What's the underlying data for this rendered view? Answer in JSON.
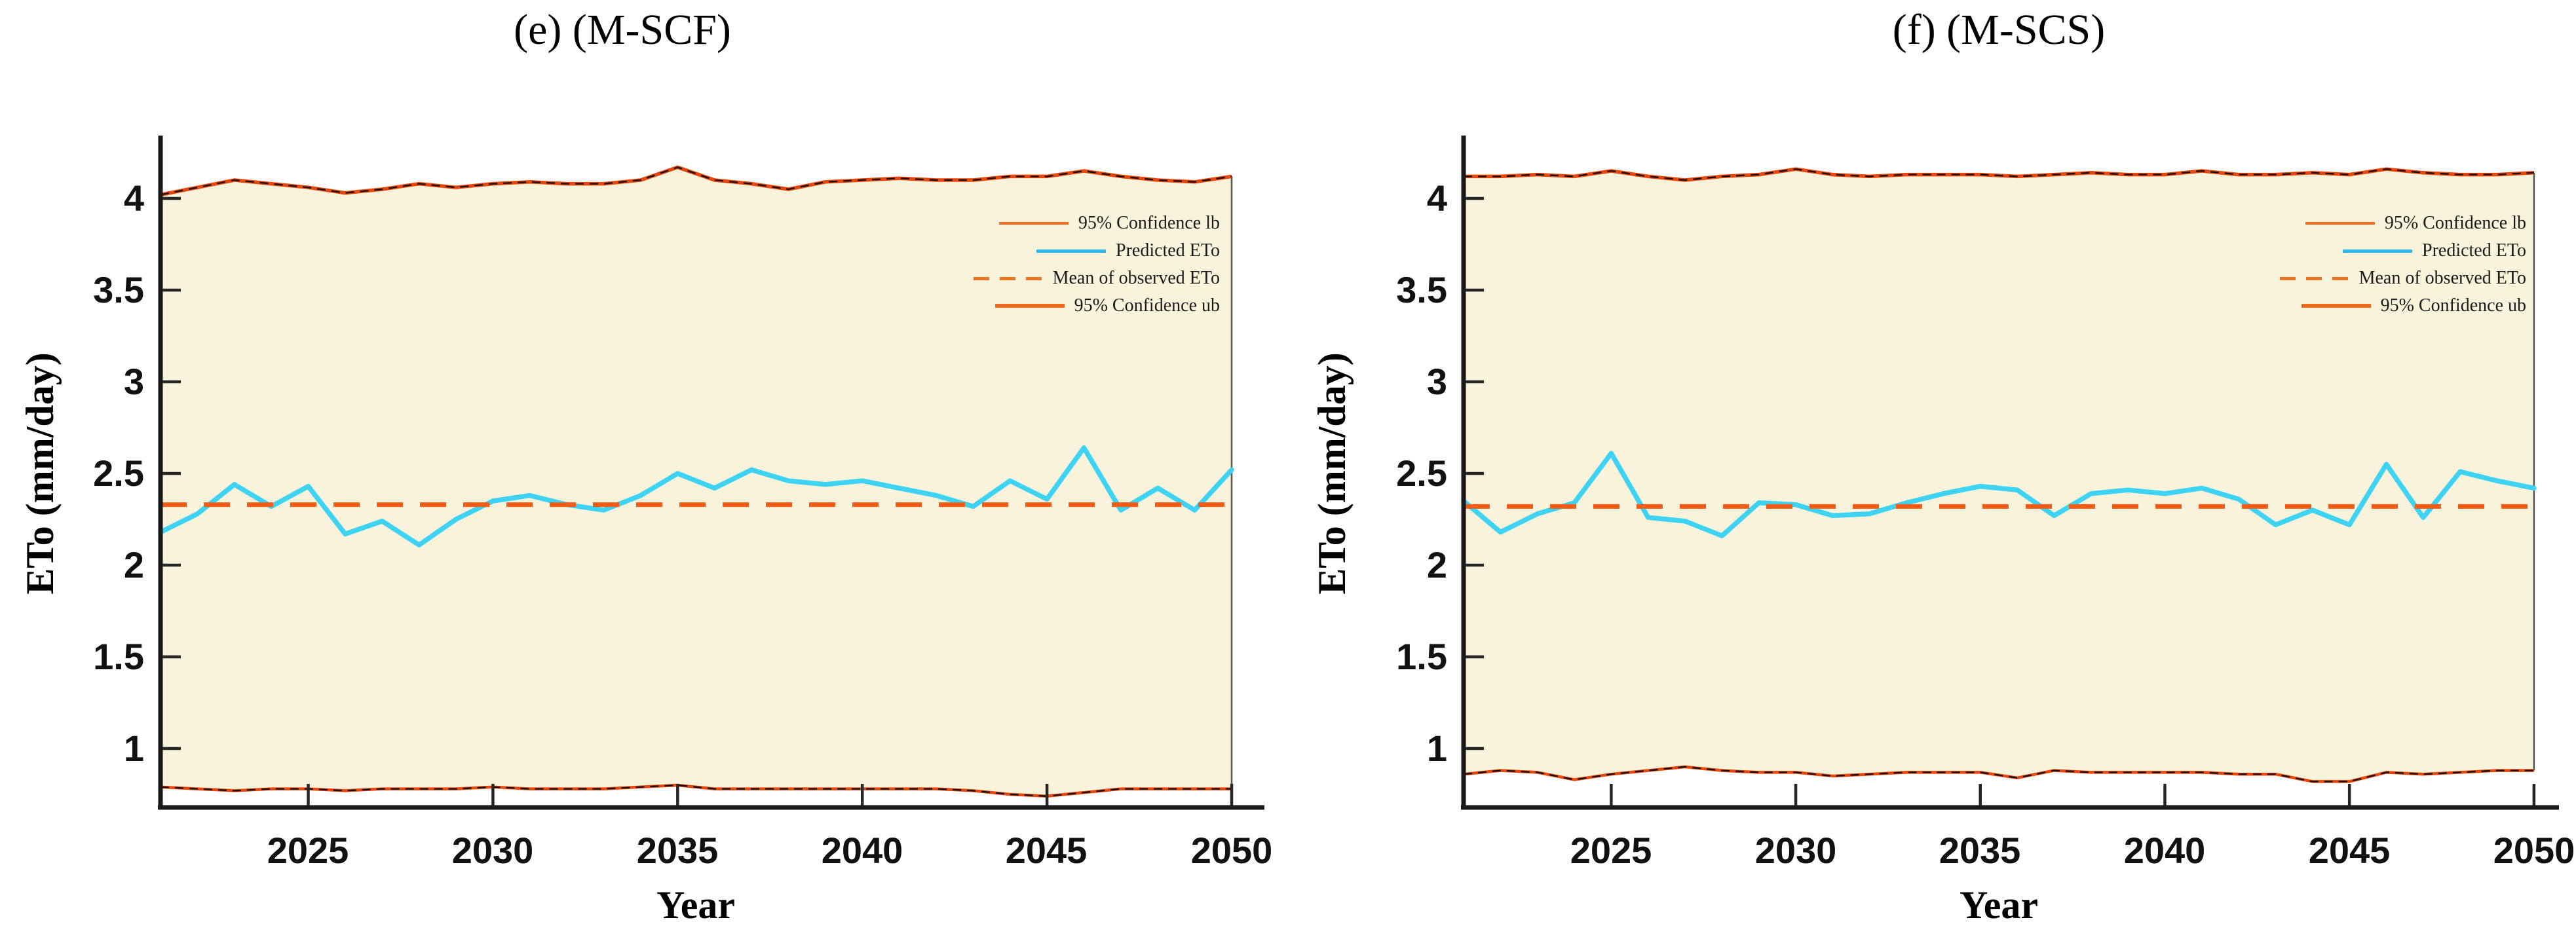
{
  "colors": {
    "confidence_line": "#e8470c",
    "confidence_overlay": "#1a0d00",
    "predicted_line": "#3ed3f2",
    "mean_line": "#f25c17",
    "band_fill": "#faf3dc",
    "band_edge": "#555555",
    "axis": "#1a1a1a",
    "tick": "#262626"
  },
  "chart_data": [
    {
      "id": "chart-e",
      "type": "line",
      "title": "(e) (M-SCF)",
      "xlabel": "Year",
      "ylabel": "ETo (mm/day)",
      "x": [
        2021,
        2022,
        2023,
        2024,
        2025,
        2026,
        2027,
        2028,
        2029,
        2030,
        2031,
        2032,
        2033,
        2034,
        2035,
        2036,
        2037,
        2038,
        2039,
        2040,
        2041,
        2042,
        2043,
        2044,
        2045,
        2046,
        2047,
        2048,
        2049,
        2050
      ],
      "xlim": [
        2021,
        2050.9
      ],
      "ylim": [
        0.68,
        4.34
      ],
      "grid": false,
      "legend_position": "upper right",
      "x_tick_labels": [
        "2025",
        "2030",
        "2035",
        "2040",
        "2045",
        "2050"
      ],
      "y_tick_labels": [
        "4",
        "3.5",
        "3",
        "2.5",
        "2",
        "1.5",
        "1"
      ],
      "series": [
        {
          "name": "95% Confidence lb",
          "style": "solid-thin",
          "values": [
            0.79,
            0.78,
            0.77,
            0.78,
            0.78,
            0.77,
            0.78,
            0.78,
            0.78,
            0.79,
            0.78,
            0.78,
            0.78,
            0.79,
            0.8,
            0.78,
            0.78,
            0.78,
            0.78,
            0.78,
            0.78,
            0.78,
            0.77,
            0.75,
            0.74,
            0.76,
            0.78,
            0.78,
            0.78,
            0.78
          ]
        },
        {
          "name": "Predicted ETo",
          "style": "solid",
          "values": [
            2.18,
            2.28,
            2.44,
            2.32,
            2.43,
            2.17,
            2.24,
            2.11,
            2.25,
            2.35,
            2.38,
            2.33,
            2.3,
            2.38,
            2.5,
            2.42,
            2.52,
            2.46,
            2.44,
            2.46,
            2.42,
            2.38,
            2.32,
            2.46,
            2.36,
            2.64,
            2.3,
            2.42,
            2.3,
            2.52
          ]
        },
        {
          "name": "Mean of observed ETo",
          "style": "dashed",
          "values": 2.33
        },
        {
          "name": "95% Confidence ub",
          "style": "solid-thick",
          "values": [
            4.02,
            4.06,
            4.1,
            4.08,
            4.06,
            4.03,
            4.05,
            4.08,
            4.06,
            4.08,
            4.09,
            4.08,
            4.08,
            4.1,
            4.17,
            4.1,
            4.08,
            4.05,
            4.09,
            4.1,
            4.11,
            4.1,
            4.1,
            4.12,
            4.12,
            4.15,
            4.12,
            4.1,
            4.09,
            4.12
          ]
        }
      ],
      "fill_between": {
        "upper": "95% Confidence ub",
        "lower": "95% Confidence lb"
      }
    },
    {
      "id": "chart-f",
      "type": "line",
      "title": "(f) (M-SCS)",
      "xlabel": "Year",
      "ylabel": "ETo (mm/day)",
      "x": [
        2021,
        2022,
        2023,
        2024,
        2025,
        2026,
        2027,
        2028,
        2029,
        2030,
        2031,
        2032,
        2033,
        2034,
        2035,
        2036,
        2037,
        2038,
        2039,
        2040,
        2041,
        2042,
        2043,
        2044,
        2045,
        2046,
        2047,
        2048,
        2049,
        2050
      ],
      "xlim": [
        2021,
        2050.7
      ],
      "ylim": [
        0.68,
        4.34
      ],
      "grid": false,
      "legend_position": "upper right",
      "x_tick_labels": [
        "2025",
        "2030",
        "2035",
        "2040",
        "2045",
        "2050"
      ],
      "y_tick_labels": [
        "4",
        "3.5",
        "3",
        "2.5",
        "2",
        "1.5",
        "1"
      ],
      "series": [
        {
          "name": "95% Confidence lb",
          "style": "solid-thin",
          "values": [
            0.86,
            0.88,
            0.87,
            0.83,
            0.86,
            0.88,
            0.9,
            0.88,
            0.87,
            0.87,
            0.85,
            0.86,
            0.87,
            0.87,
            0.87,
            0.84,
            0.88,
            0.87,
            0.87,
            0.87,
            0.87,
            0.86,
            0.86,
            0.82,
            0.82,
            0.87,
            0.86,
            0.87,
            0.88,
            0.88
          ]
        },
        {
          "name": "Predicted ETo",
          "style": "solid",
          "values": [
            2.35,
            2.18,
            2.28,
            2.34,
            2.61,
            2.26,
            2.24,
            2.16,
            2.34,
            2.33,
            2.27,
            2.28,
            2.34,
            2.39,
            2.43,
            2.41,
            2.27,
            2.39,
            2.41,
            2.39,
            2.42,
            2.36,
            2.22,
            2.3,
            2.22,
            2.55,
            2.26,
            2.51,
            2.46,
            2.42
          ]
        },
        {
          "name": "Mean of observed ETo",
          "style": "dashed",
          "values": 2.32
        },
        {
          "name": "95% Confidence ub",
          "style": "solid-thick",
          "values": [
            4.12,
            4.12,
            4.13,
            4.12,
            4.15,
            4.12,
            4.1,
            4.12,
            4.13,
            4.16,
            4.13,
            4.12,
            4.13,
            4.13,
            4.13,
            4.12,
            4.13,
            4.14,
            4.13,
            4.13,
            4.15,
            4.13,
            4.13,
            4.14,
            4.13,
            4.16,
            4.14,
            4.13,
            4.13,
            4.14
          ]
        }
      ],
      "fill_between": {
        "upper": "95% Confidence ub",
        "lower": "95% Confidence lb"
      }
    }
  ]
}
